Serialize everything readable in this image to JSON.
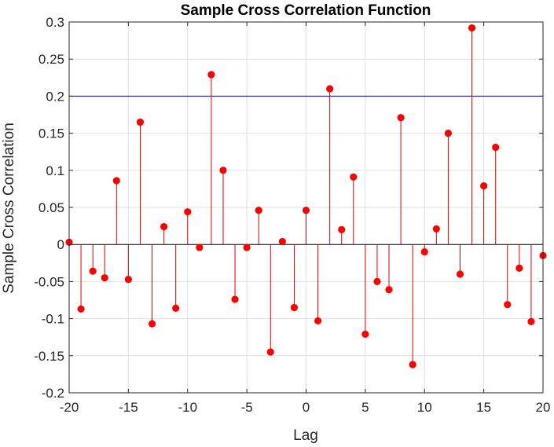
{
  "chart_data": {
    "type": "stem",
    "title": "Sample Cross Correlation Function",
    "xlabel": "Lag",
    "ylabel": "Sample Cross Correlation",
    "xlim": [
      -20,
      20
    ],
    "ylim": [
      -0.2,
      0.3
    ],
    "xticks": [
      -20,
      -15,
      -10,
      -5,
      0,
      5,
      10,
      15,
      20
    ],
    "xtick_labels": [
      "-20",
      "-15",
      "-10",
      "-5",
      "0",
      "5",
      "10",
      "15",
      "20"
    ],
    "yticks": [
      -0.2,
      -0.15,
      -0.1,
      -0.05,
      0,
      0.05,
      0.1,
      0.15,
      0.2,
      0.25,
      0.3
    ],
    "ytick_labels": [
      "-0.2",
      "-0.15",
      "-0.1",
      "-0.05",
      "0",
      "0.05",
      "0.1",
      "0.15",
      "0.2",
      "0.25",
      "0.3"
    ],
    "grid": true,
    "confidence_bounds": [
      0.2,
      -0.2
    ],
    "series": [
      {
        "x": [
          -20,
          -19,
          -18,
          -17,
          -16,
          -15,
          -14,
          -13,
          -12,
          -11,
          -10,
          -9,
          -8,
          -7,
          -6,
          -5,
          -4,
          -3,
          -2,
          -1,
          0,
          1,
          2,
          3,
          4,
          5,
          6,
          7,
          8,
          9,
          10,
          11,
          12,
          13,
          14,
          15,
          16,
          17,
          18,
          19,
          20
        ],
        "values": [
          0.003,
          -0.087,
          -0.036,
          -0.045,
          0.086,
          -0.047,
          0.165,
          -0.107,
          0.024,
          -0.086,
          0.044,
          -0.004,
          0.229,
          0.1,
          -0.074,
          -0.004,
          0.046,
          -0.145,
          0.004,
          -0.085,
          0.046,
          -0.103,
          0.21,
          0.02,
          0.091,
          -0.121,
          -0.05,
          -0.061,
          0.171,
          -0.162,
          -0.01,
          0.021,
          0.15,
          -0.04,
          0.292,
          0.079,
          0.131,
          -0.081,
          -0.032,
          -0.104,
          -0.015
        ]
      }
    ],
    "colors": {
      "stem": "#e00000",
      "marker": "#ff0000",
      "bounds": "#0000ff",
      "zero_line": "#000000",
      "grid": "#e0e0e0",
      "axis": "#262626"
    }
  }
}
